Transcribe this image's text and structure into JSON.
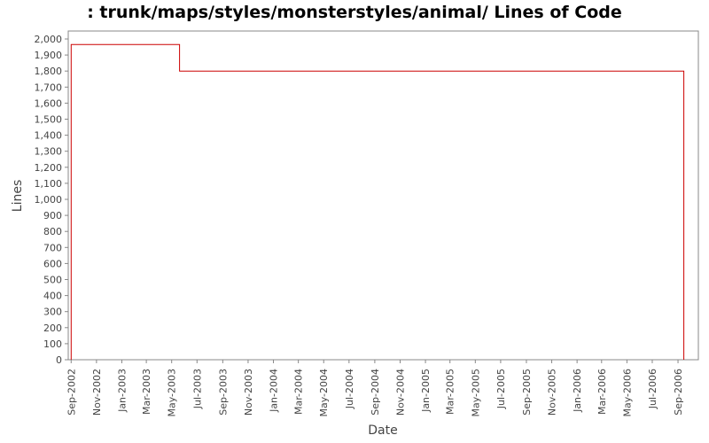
{
  "chart_data": {
    "type": "line",
    "title": ": trunk/maps/styles/monsterstyles/animal/ Lines of Code",
    "xlabel": "Date",
    "ylabel": "Lines",
    "step": true,
    "grid": false,
    "line_color": "#cc0000",
    "ylim": [
      0,
      2000
    ],
    "yticks": [
      0,
      100,
      200,
      300,
      400,
      500,
      600,
      700,
      800,
      900,
      1000,
      1100,
      1200,
      1300,
      1400,
      1500,
      1600,
      1700,
      1800,
      1900,
      2000
    ],
    "ytick_labels": [
      "0",
      "100",
      "200",
      "300",
      "400",
      "500",
      "600",
      "700",
      "800",
      "900",
      "1,000",
      "1,100",
      "1,200",
      "1,300",
      "1,400",
      "1,500",
      "1,600",
      "1,700",
      "1,800",
      "1,900",
      "2,000"
    ],
    "xlim": [
      "2002-08-25",
      "2006-10-20"
    ],
    "xticks": [
      "2002-09-01",
      "2002-11-01",
      "2003-01-01",
      "2003-03-01",
      "2003-05-01",
      "2003-07-01",
      "2003-09-01",
      "2003-11-01",
      "2004-01-01",
      "2004-03-01",
      "2004-05-01",
      "2004-07-01",
      "2004-09-01",
      "2004-11-01",
      "2005-01-01",
      "2005-03-01",
      "2005-05-01",
      "2005-07-01",
      "2005-09-01",
      "2005-11-01",
      "2006-01-01",
      "2006-03-01",
      "2006-05-01",
      "2006-07-01",
      "2006-09-01"
    ],
    "xtick_labels": [
      "Sep-2002",
      "Nov-2002",
      "Jan-2003",
      "Mar-2003",
      "May-2003",
      "Jul-2003",
      "Sep-2003",
      "Nov-2003",
      "Jan-2004",
      "Mar-2004",
      "May-2004",
      "Jul-2004",
      "Sep-2004",
      "Nov-2004",
      "Jan-2005",
      "Mar-2005",
      "May-2005",
      "Jul-2005",
      "Sep-2005",
      "Nov-2005",
      "Jan-2006",
      "Mar-2006",
      "May-2006",
      "Jul-2006",
      "Sep-2006"
    ],
    "series": [
      {
        "x": [
          "2002-09-01",
          "2002-09-01",
          "2003-05-20",
          "2003-05-20",
          "2006-09-15",
          "2006-09-15"
        ],
        "y": [
          0,
          1965,
          1965,
          1800,
          1800,
          0
        ]
      }
    ]
  }
}
